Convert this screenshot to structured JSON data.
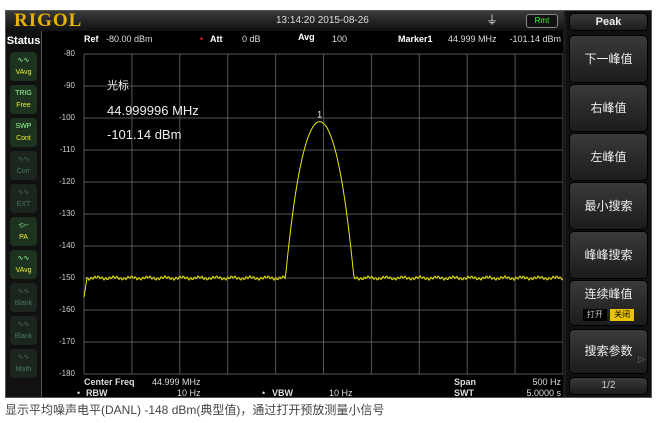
{
  "header": {
    "brand": "RIGOL",
    "datetime": "13:14:20 2015-08-26",
    "usb_icon": "usb-icon",
    "remote_badge": "Rmt"
  },
  "status": {
    "title": "Status",
    "icons": [
      {
        "name": "trace-avg",
        "line1": "∿∿",
        "line2": "VAvg",
        "active": true
      },
      {
        "name": "trig",
        "line1": "TRIG",
        "line2": "Free",
        "active": true
      },
      {
        "name": "swp",
        "line1": "SWP",
        "line2": "Cont",
        "active": true
      },
      {
        "name": "corr",
        "line1": "∿∿",
        "line2": "Corr",
        "active": false
      },
      {
        "name": "ext",
        "line1": "∿∿",
        "line2": "EXT",
        "active": false
      },
      {
        "name": "pa",
        "line1": "-▷-",
        "line2": "PA",
        "active": true
      },
      {
        "name": "vavg",
        "line1": "∿∿",
        "line2": "VAvg",
        "active": true
      },
      {
        "name": "blank1",
        "line1": "∿∿",
        "line2": "Blank",
        "active": false
      },
      {
        "name": "blank2",
        "line1": "∿∿",
        "line2": "Blank",
        "active": false
      },
      {
        "name": "math",
        "line1": "∿∿",
        "line2": "Math",
        "active": false
      }
    ]
  },
  "top": {
    "ref_label": "Ref",
    "ref_value": "-80.00 dBm",
    "att_label": "Att",
    "att_value": "0 dB",
    "avg_label": "Avg",
    "avg_value": "100",
    "marker_label": "Marker1",
    "marker_freq": "44.999 MHz",
    "marker_level": "-101.14 dBm"
  },
  "marker_readout": {
    "title": "光标",
    "freq": "44.999996 MHz",
    "level": "-101.14 dBm",
    "marker_number": "1"
  },
  "bottom": {
    "center_label": "Center Freq",
    "center_value": "44.999 MHz",
    "span_label": "Span",
    "span_value": "500 Hz",
    "rbw_label": "RBW",
    "rbw_value": "10 Hz",
    "vbw_label": "VBW",
    "vbw_value": "10 Hz",
    "swt_label": "SWT",
    "swt_value": "5.0000 s"
  },
  "menu": {
    "title": "Peak",
    "items": [
      "下一峰值",
      "右峰值",
      "左峰值",
      "最小搜索",
      "峰峰搜索",
      "连续峰值",
      "搜索参数"
    ],
    "toggle_on": "打开",
    "toggle_off": "关闭",
    "toggle_selected": "关闭",
    "page": "1/2"
  },
  "caption": "显示平均噪声电平(DANL) -148 dBm(典型值)，通过打开预放测量小信号",
  "chart_data": {
    "type": "line",
    "ylim": [
      -180,
      -80
    ],
    "y_ticks": [
      "-80",
      "-90",
      "-100",
      "-110",
      "-120",
      "-130",
      "-140",
      "-150",
      "-160",
      "-170",
      "-180"
    ],
    "x_center_mhz": 44.999,
    "x_span_hz": 500,
    "grid": true,
    "trace_color": "#e8e800",
    "noise_floor_dbm": -150,
    "peak": {
      "offset_hz": -4,
      "level_dbm": -101.14
    }
  }
}
